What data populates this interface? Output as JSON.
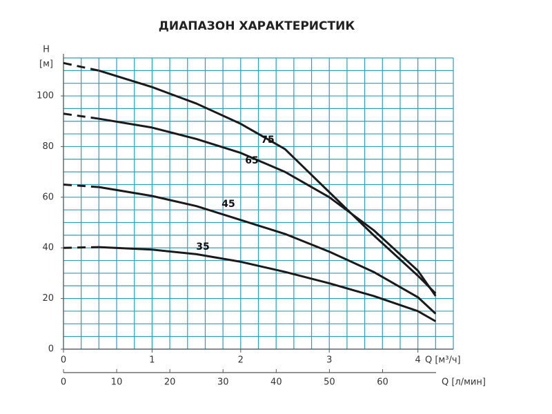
{
  "chart_data": {
    "type": "line",
    "title": "ДИАПАЗОН ХАРАКТЕРИСТИК",
    "ylabel": "H",
    "yunit": "[м]",
    "xlabel": "Q [м³/ч]",
    "x2label": "Q [л/мин]",
    "x": [
      0,
      0.4,
      1,
      1.5,
      2,
      2.5,
      3,
      3.5,
      4,
      4.2
    ],
    "dashed_to": 0.4,
    "series": [
      {
        "name": "75",
        "color": "#1a1a1a",
        "values": [
          113,
          110,
          103.5,
          97,
          89,
          79,
          62,
          45,
          29,
          22
        ]
      },
      {
        "name": "65",
        "color": "#1a1a1a",
        "values": [
          93,
          91,
          87.5,
          83,
          77.5,
          70,
          60,
          47,
          31,
          21
        ]
      },
      {
        "name": "45",
        "color": "#1a1a1a",
        "values": [
          65,
          64,
          60.5,
          56.5,
          51,
          45.5,
          38.5,
          30.5,
          20.5,
          14
        ]
      },
      {
        "name": "35",
        "color": "#1a1a1a",
        "values": [
          40,
          40.3,
          39.3,
          37.5,
          34.5,
          30.5,
          26,
          21,
          15,
          11
        ]
      }
    ],
    "xlim": [
      0,
      4.4
    ],
    "xticks": [
      0,
      1,
      2,
      3,
      4
    ],
    "x2lim": [
      0,
      73.3
    ],
    "x2ticks": [
      0,
      10,
      20,
      30,
      40,
      50,
      60
    ],
    "ylim": [
      0,
      115
    ],
    "yticks": [
      0,
      20,
      40,
      60,
      80,
      100
    ],
    "xgrid_step": 0.2,
    "ygrid_step": 5,
    "grid_color": "#2a9fb5"
  }
}
